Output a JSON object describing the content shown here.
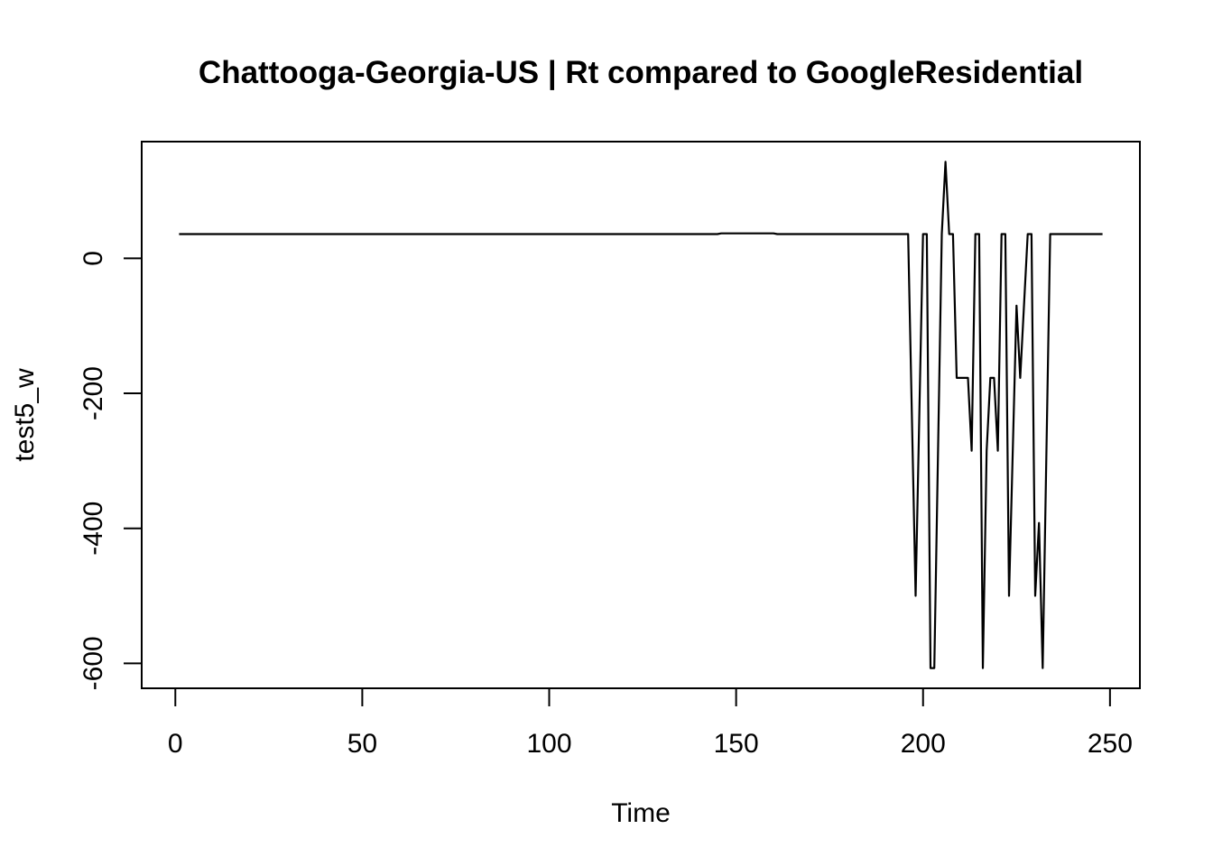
{
  "chart_data": {
    "type": "line",
    "title": "Chattooga-Georgia-US | Rt compared to GoogleResidential",
    "xlabel": "Time",
    "ylabel": "test5_w",
    "xlim": [
      -9,
      258
    ],
    "ylim": [
      -637,
      173
    ],
    "xticks": [
      0,
      50,
      100,
      150,
      200,
      250
    ],
    "yticks": [
      0,
      -200,
      -400,
      -600
    ],
    "grid": false,
    "color": "#000000",
    "series": [
      {
        "points": [
          [
            1,
            36
          ],
          [
            145,
            36
          ],
          [
            146,
            37
          ],
          [
            160,
            37
          ],
          [
            161,
            36
          ],
          [
            196,
            36
          ],
          [
            198,
            -500
          ],
          [
            200,
            36
          ],
          [
            201,
            36
          ],
          [
            202,
            -607
          ],
          [
            203,
            -607
          ],
          [
            205,
            36
          ],
          [
            206,
            143
          ],
          [
            207,
            36
          ],
          [
            208,
            36
          ],
          [
            209,
            -177
          ],
          [
            212,
            -177
          ],
          [
            213,
            -285
          ],
          [
            214,
            36
          ],
          [
            215,
            36
          ],
          [
            216,
            -607
          ],
          [
            217,
            -285
          ],
          [
            218,
            -177
          ],
          [
            219,
            -177
          ],
          [
            220,
            -285
          ],
          [
            221,
            36
          ],
          [
            222,
            36
          ],
          [
            223,
            -500
          ],
          [
            225,
            -70
          ],
          [
            226,
            -177
          ],
          [
            228,
            36
          ],
          [
            229,
            36
          ],
          [
            230,
            -500
          ],
          [
            231,
            -392
          ],
          [
            232,
            -607
          ],
          [
            234,
            36
          ],
          [
            248,
            36
          ]
        ]
      }
    ]
  }
}
